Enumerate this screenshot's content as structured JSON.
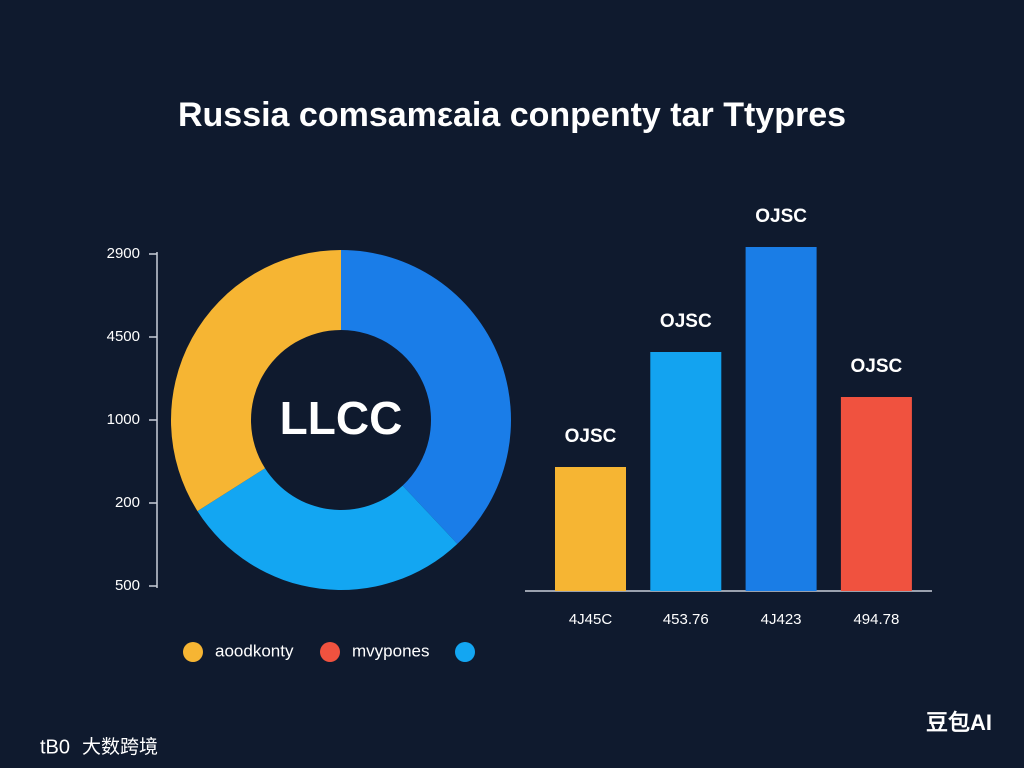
{
  "chart_data": [
    {
      "type": "pie",
      "title": "Russia comsamεaia conpenty tar Ttypres",
      "center_label": "LLCC",
      "values": [
        38,
        28,
        34
      ],
      "colors": [
        "#1a7de8",
        "#13a6f2",
        "#f6b533"
      ],
      "axis_labels": [
        "2900",
        "4500",
        "1000",
        "200",
        "500"
      ],
      "legend": [
        {
          "name": "aoodkonty",
          "color": "#f6b533"
        },
        {
          "name": "mvypones",
          "color": "#f0523f"
        },
        {
          "name": null,
          "color": "#13a6f2"
        }
      ]
    },
    {
      "type": "bar",
      "categories": [
        "4J45C",
        "453.76",
        "4J423",
        "494.78"
      ],
      "values": [
        124,
        239,
        344,
        194
      ],
      "value_labels": [
        "OJSC",
        "OJSC",
        "OJSC",
        "OJSC"
      ],
      "colors": [
        "#f6b533",
        "#13a3f0",
        "#1a7de6",
        "#f0523f"
      ]
    }
  ],
  "watermarks": {
    "left": "大数跨境",
    "right": "豆包AI"
  }
}
